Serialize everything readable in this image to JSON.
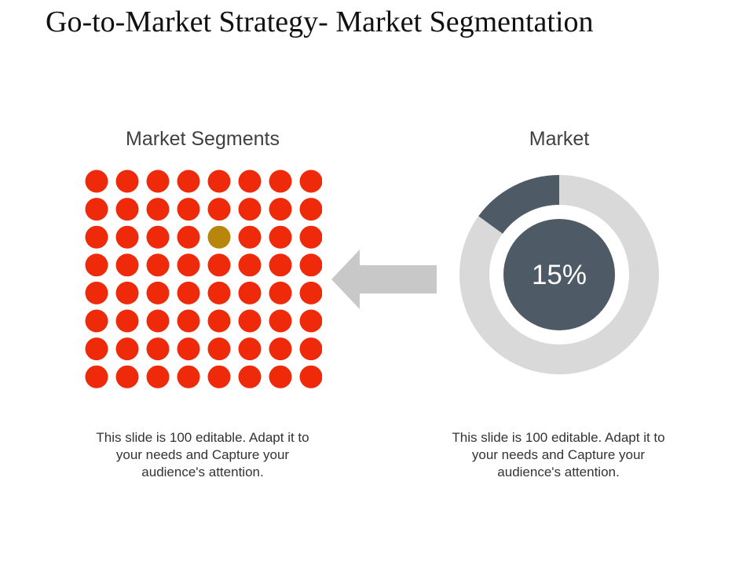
{
  "slide": {
    "title": "Go-to-Market Strategy- Market Segmentation"
  },
  "segments_panel": {
    "heading": "Market Segments",
    "grid": {
      "rows": 8,
      "cols": 8,
      "highlight": {
        "row": 3,
        "col": 5
      }
    },
    "caption": "This slide is 100 editable. Adapt it to your needs and Capture your audience's attention."
  },
  "market_panel": {
    "heading": "Market",
    "percent_value": 15,
    "percent_label": "15%",
    "caption": "This slide is 100 editable. Adapt it to your needs and Capture your audience's attention."
  },
  "colors": {
    "dot": "#ee2a0b",
    "dot_highlight": "#b8860b",
    "arrow": "#c8c8c8",
    "donut_track": "#d9d9d9",
    "donut_fill": "#4e5a66",
    "center_fill": "#4e5a66",
    "center_text": "#ffffff"
  },
  "chart_data": {
    "type": "pie",
    "values": [
      15,
      85
    ]
  }
}
